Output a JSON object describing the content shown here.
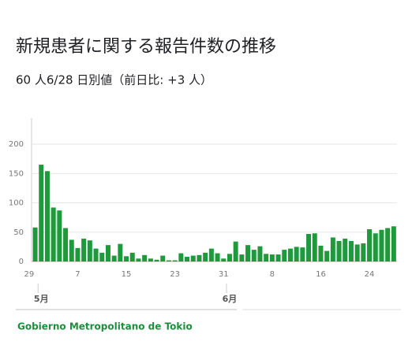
{
  "chart_data": {
    "type": "bar",
    "title": "新規患者に関する報告件数の推移",
    "subtitle": "60 人6/28 日別値（前日比: +3 人）",
    "source": "Gobierno Metropolitano de Tokio",
    "month_labels": [
      "5月",
      "6月"
    ],
    "categories": [
      "29",
      null,
      null,
      null,
      null,
      null,
      null,
      null,
      "7",
      null,
      null,
      null,
      null,
      null,
      null,
      null,
      "15",
      null,
      null,
      null,
      null,
      null,
      null,
      null,
      "23",
      null,
      null,
      null,
      null,
      null,
      null,
      null,
      "31",
      null,
      null,
      null,
      null,
      null,
      null,
      null,
      "8",
      null,
      null,
      null,
      null,
      null,
      null,
      null,
      "16",
      null,
      null,
      null,
      null,
      null,
      null,
      null,
      "24",
      null,
      null,
      null,
      null
    ],
    "values": [
      null,
      58,
      165,
      154,
      92,
      87,
      57,
      37,
      23,
      39,
      36,
      22,
      15,
      28,
      10,
      30,
      9,
      15,
      5,
      11,
      5,
      3,
      10,
      2,
      2,
      14,
      8,
      10,
      11,
      15,
      22,
      14,
      5,
      13,
      34,
      12,
      28,
      20,
      26,
      13,
      12,
      12,
      20,
      22,
      25,
      24,
      47,
      48,
      27,
      18,
      41,
      35,
      39,
      35,
      29,
      31,
      55,
      48,
      54,
      57,
      60
    ],
    "color": "#1e9a3c",
    "ylim": [
      0,
      200
    ],
    "yticks": [
      0,
      50,
      100,
      150,
      200
    ],
    "grid": true
  }
}
